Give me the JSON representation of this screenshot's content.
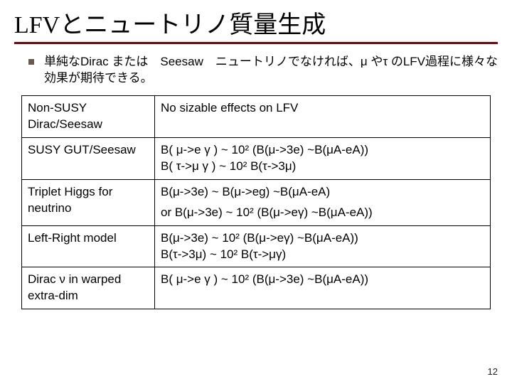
{
  "title": "LFVとニュートリノ質量生成",
  "bullet": "単純なDirac または　Seesaw　ニュートリノでなければ、μ やτ のLFV過程に様々な効果が期待できる。",
  "table": {
    "rows": [
      {
        "label": "Non-SUSY Dirac/Seesaw",
        "content_lines": [
          "No sizable effects on LFV"
        ],
        "label_small": false
      },
      {
        "label": "SUSY GUT/Seesaw",
        "content_lines": [
          "B( μ->e γ ) ~ 10² (B(μ->3e) ~B(μA-eA))",
          "B( τ->μ γ ) ~ 10² B(τ->3μ)"
        ],
        "label_small": false
      },
      {
        "label": "Triplet Higgs for neutrino",
        "content_lines": [
          "B(μ->3e) ~ B(μ->eg) ~B(μA-eA)",
          "or B(μ->3e) ~ 10² (B(μ->eγ) ~B(μA-eA))"
        ],
        "label_small": false
      },
      {
        "label": "Left-Right model",
        "content_lines": [
          "B(μ->3e) ~ 10² (B(μ->eγ) ~B(μA-eA))",
          "B(τ->3μ) ~ 10² B(τ->μγ)"
        ],
        "label_small": false
      },
      {
        "label": "Dirac ν in warped extra-dim",
        "content_lines": [
          "B( μ->e γ ) ~ 10² (B(μ->3e) ~B(μA-eA))"
        ],
        "label_small": true
      }
    ]
  },
  "page_number": "12",
  "colors": {
    "title_underline": "#800000",
    "bullet_box": "#6b5b4a",
    "border": "#000000",
    "text": "#000000",
    "background": "#ffffff"
  }
}
